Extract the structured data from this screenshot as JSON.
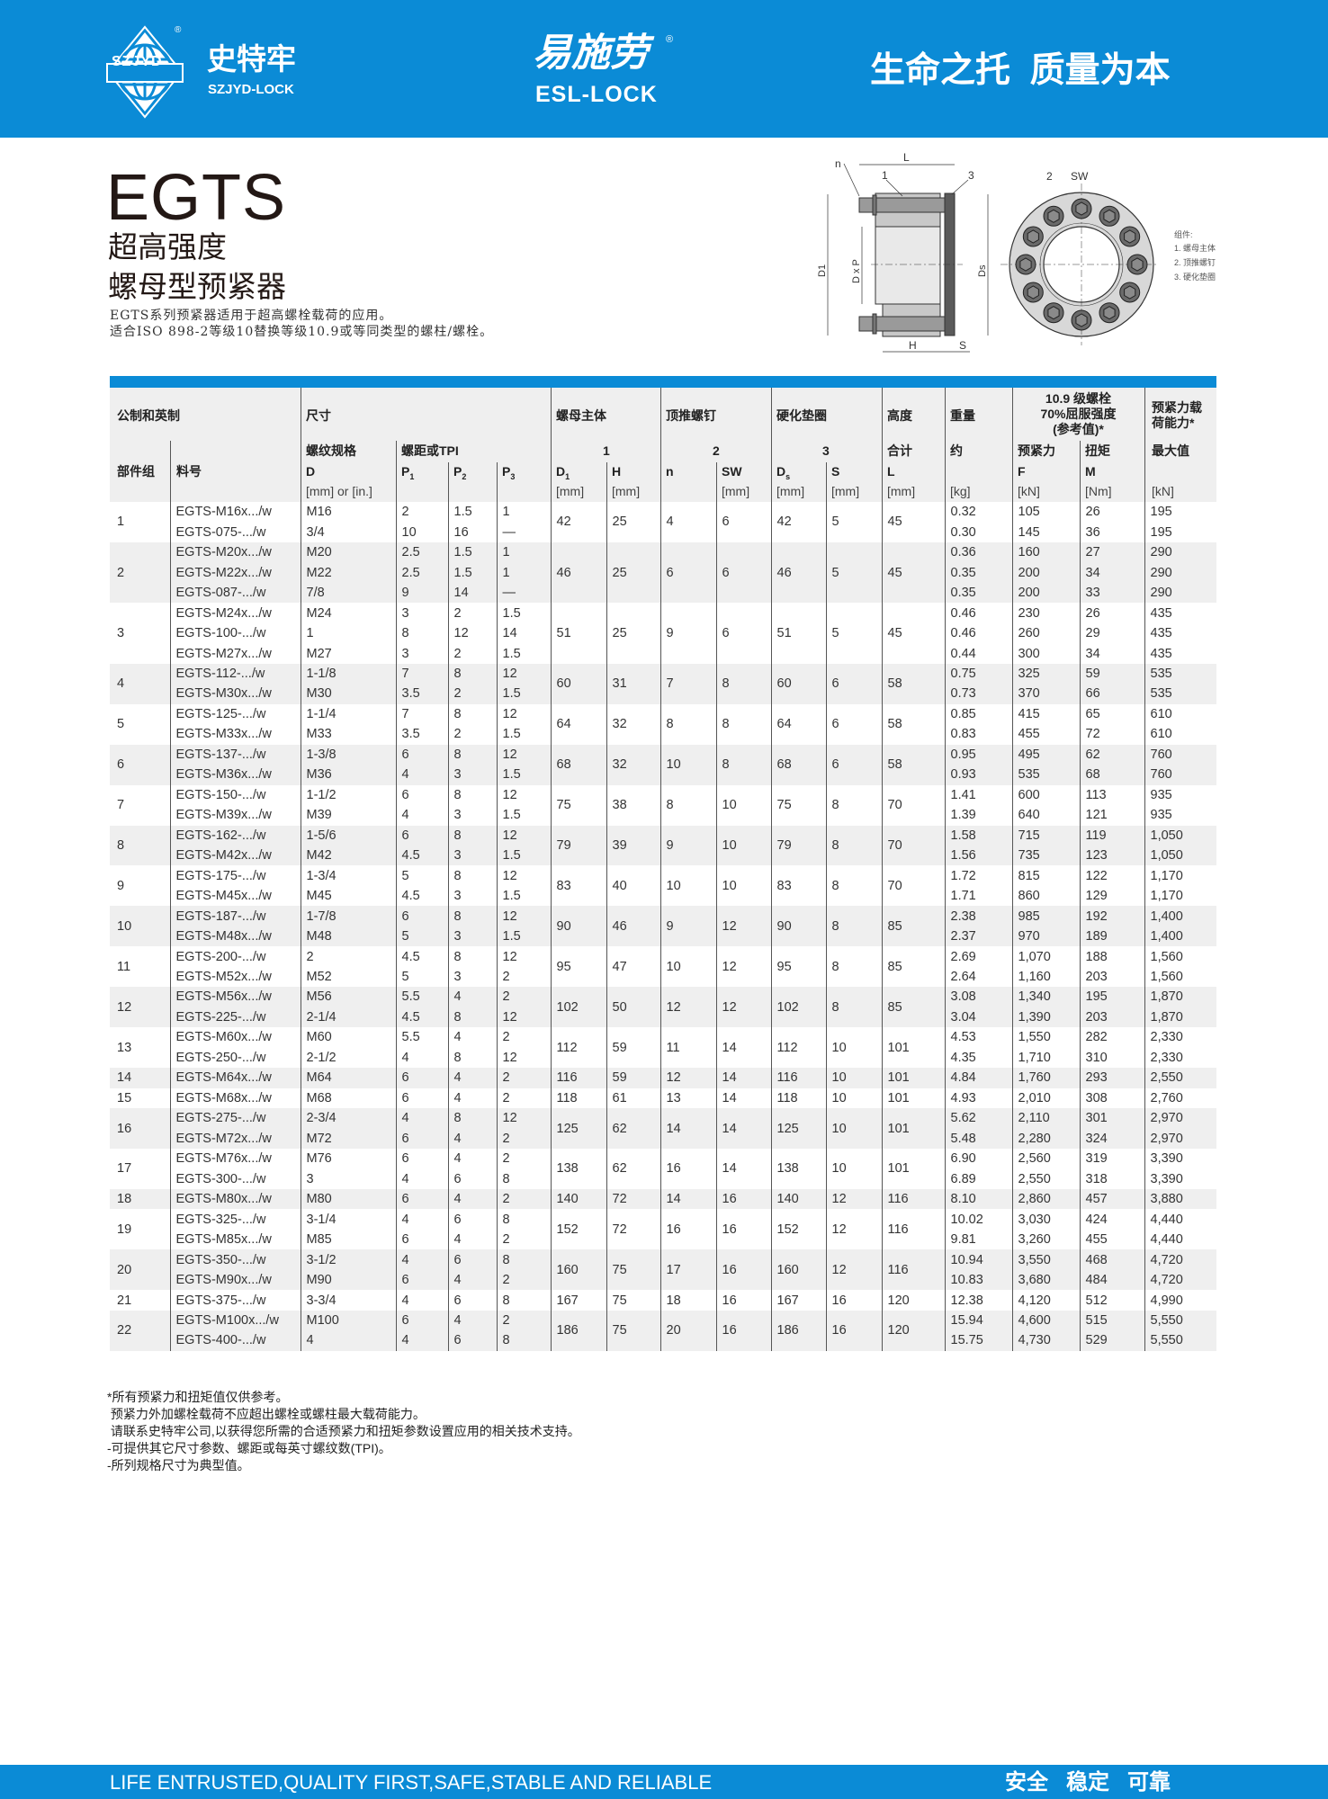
{
  "header": {
    "brand_cn": "史特牢",
    "brand_en": "SZJYD-LOCK",
    "logo_text": "SZJYD",
    "registered": "®",
    "center_cn": "易施劳",
    "center_en": "ESL-LOCK",
    "slogan": "生命之托  质量为本",
    "accent_color": "#0b8bd6"
  },
  "product": {
    "code": "EGTS",
    "subtitle1": "超高强度",
    "subtitle2": "螺母型预紧器",
    "desc1": "EGTS系列预紧器适用于超高螺栓载荷的应用。",
    "desc2": "适合ISO 898-2等级10替换等级10.9或等同类型的螺柱/螺栓。"
  },
  "drawing": {
    "labels": {
      "n": "n",
      "L": "L",
      "p1": "1",
      "p3": "3",
      "p2": "2",
      "SW": "SW",
      "D1": "D1",
      "DxP": "D x P",
      "Ds": "Ds",
      "H": "H",
      "S": "S"
    },
    "legend_title": "组件:",
    "legend": [
      "1.  螺母主体",
      "2.  顶推螺钉",
      "3.  硬化垫圈"
    ]
  },
  "table": {
    "head": {
      "metric_imperial": "公制和英制",
      "dimensions": "尺寸",
      "nut_body": "螺母主体",
      "jackbolt": "顶推螺钉",
      "washer": "硬化垫圈",
      "height": "高度",
      "weight": "重量",
      "grade_l1": "10.9 级螺栓",
      "grade_l2": "70%屈服强度",
      "grade_l3": "(参考值)*",
      "capacity_l1": "预紧力载",
      "capacity_l2": "荷能力*",
      "thread_spec": "螺纹规格",
      "pitch_tpi": "螺距或TPI",
      "n1": "1",
      "n2": "2",
      "n3": "3",
      "total": "合计",
      "approx": "约",
      "preload": "预紧力",
      "torque": "扭矩",
      "max": "最大值",
      "group": "部件组",
      "part_no": "料号",
      "D": "D",
      "P": "P",
      "s1": "1",
      "s2": "2",
      "s3": "3",
      "D1": "D",
      "H": "H",
      "n": "n",
      "SW": "SW",
      "Ds": "D",
      "s_s": "s",
      "S": "S",
      "L": "L",
      "F": "F",
      "M": "M",
      "u_D": "[mm] or [in.]",
      "u_mm": "[mm]",
      "u_kg": "[kg]",
      "u_kN": "[kN]",
      "u_Nm": "[Nm]"
    },
    "groups": [
      {
        "g": "1",
        "D1": "42",
        "H": "25",
        "n": "4",
        "SW": "6",
        "Ds": "42",
        "S": "5",
        "L": "45",
        "rows": [
          [
            "EGTS-M16x.../w",
            "M16",
            "2",
            "1.5",
            "1",
            "0.32",
            "105",
            "26",
            "195"
          ],
          [
            "EGTS-075-.../w",
            "3/4",
            "10",
            "16",
            "—",
            "0.30",
            "145",
            "36",
            "195"
          ]
        ]
      },
      {
        "g": "2",
        "D1": "46",
        "H": "25",
        "n": "6",
        "SW": "6",
        "Ds": "46",
        "S": "5",
        "L": "45",
        "rows": [
          [
            "EGTS-M20x.../w",
            "M20",
            "2.5",
            "1.5",
            "1",
            "0.36",
            "160",
            "27",
            "290"
          ],
          [
            "EGTS-M22x.../w",
            "M22",
            "2.5",
            "1.5",
            "1",
            "0.35",
            "200",
            "34",
            "290"
          ],
          [
            "EGTS-087-.../w",
            "7/8",
            "9",
            "14",
            "—",
            "0.35",
            "200",
            "33",
            "290"
          ]
        ]
      },
      {
        "g": "3",
        "D1": "51",
        "H": "25",
        "n": "9",
        "SW": "6",
        "Ds": "51",
        "S": "5",
        "L": "45",
        "rows": [
          [
            "EGTS-M24x.../w",
            "M24",
            "3",
            "2",
            "1.5",
            "0.46",
            "230",
            "26",
            "435"
          ],
          [
            "EGTS-100-.../w",
            "1",
            "8",
            "12",
            "14",
            "0.46",
            "260",
            "29",
            "435"
          ],
          [
            "EGTS-M27x.../w",
            "M27",
            "3",
            "2",
            "1.5",
            "0.44",
            "300",
            "34",
            "435"
          ]
        ]
      },
      {
        "g": "4",
        "D1": "60",
        "H": "31",
        "n": "7",
        "SW": "8",
        "Ds": "60",
        "S": "6",
        "L": "58",
        "rows": [
          [
            "EGTS-112-.../w",
            "1-1/8",
            "7",
            "8",
            "12",
            "0.75",
            "325",
            "59",
            "535"
          ],
          [
            "EGTS-M30x.../w",
            "M30",
            "3.5",
            "2",
            "1.5",
            "0.73",
            "370",
            "66",
            "535"
          ]
        ]
      },
      {
        "g": "5",
        "D1": "64",
        "H": "32",
        "n": "8",
        "SW": "8",
        "Ds": "64",
        "S": "6",
        "L": "58",
        "rows": [
          [
            "EGTS-125-.../w",
            "1-1/4",
            "7",
            "8",
            "12",
            "0.85",
            "415",
            "65",
            "610"
          ],
          [
            "EGTS-M33x.../w",
            "M33",
            "3.5",
            "2",
            "1.5",
            "0.83",
            "455",
            "72",
            "610"
          ]
        ]
      },
      {
        "g": "6",
        "D1": "68",
        "H": "32",
        "n": "10",
        "SW": "8",
        "Ds": "68",
        "S": "6",
        "L": "58",
        "rows": [
          [
            "EGTS-137-.../w",
            "1-3/8",
            "6",
            "8",
            "12",
            "0.95",
            "495",
            "62",
            "760"
          ],
          [
            "EGTS-M36x.../w",
            "M36",
            "4",
            "3",
            "1.5",
            "0.93",
            "535",
            "68",
            "760"
          ]
        ]
      },
      {
        "g": "7",
        "D1": "75",
        "H": "38",
        "n": "8",
        "SW": "10",
        "Ds": "75",
        "S": "8",
        "L": "70",
        "rows": [
          [
            "EGTS-150-.../w",
            "1-1/2",
            "6",
            "8",
            "12",
            "1.41",
            "600",
            "113",
            "935"
          ],
          [
            "EGTS-M39x.../w",
            "M39",
            "4",
            "3",
            "1.5",
            "1.39",
            "640",
            "121",
            "935"
          ]
        ]
      },
      {
        "g": "8",
        "D1": "79",
        "H": "39",
        "n": "9",
        "SW": "10",
        "Ds": "79",
        "S": "8",
        "L": "70",
        "rows": [
          [
            "EGTS-162-.../w",
            "1-5/6",
            "6",
            "8",
            "12",
            "1.58",
            "715",
            "119",
            "1,050"
          ],
          [
            "EGTS-M42x.../w",
            "M42",
            "4.5",
            "3",
            "1.5",
            "1.56",
            "735",
            "123",
            "1,050"
          ]
        ]
      },
      {
        "g": "9",
        "D1": "83",
        "H": "40",
        "n": "10",
        "SW": "10",
        "Ds": "83",
        "S": "8",
        "L": "70",
        "rows": [
          [
            "EGTS-175-.../w",
            "1-3/4",
            "5",
            "8",
            "12",
            "1.72",
            "815",
            "122",
            "1,170"
          ],
          [
            "EGTS-M45x.../w",
            "M45",
            "4.5",
            "3",
            "1.5",
            "1.71",
            "860",
            "129",
            "1,170"
          ]
        ]
      },
      {
        "g": "10",
        "D1": "90",
        "H": "46",
        "n": "9",
        "SW": "12",
        "Ds": "90",
        "S": "8",
        "L": "85",
        "rows": [
          [
            "EGTS-187-.../w",
            "1-7/8",
            "6",
            "8",
            "12",
            "2.38",
            "985",
            "192",
            "1,400"
          ],
          [
            "EGTS-M48x.../w",
            "M48",
            "5",
            "3",
            "1.5",
            "2.37",
            "970",
            "189",
            "1,400"
          ]
        ]
      },
      {
        "g": "11",
        "D1": "95",
        "H": "47",
        "n": "10",
        "SW": "12",
        "Ds": "95",
        "S": "8",
        "L": "85",
        "rows": [
          [
            "EGTS-200-.../w",
            "2",
            "4.5",
            "8",
            "12",
            "2.69",
            "1,070",
            "188",
            "1,560"
          ],
          [
            "EGTS-M52x.../w",
            "M52",
            "5",
            "3",
            "2",
            "2.64",
            "1,160",
            "203",
            "1,560"
          ]
        ]
      },
      {
        "g": "12",
        "D1": "102",
        "H": "50",
        "n": "12",
        "SW": "12",
        "Ds": "102",
        "S": "8",
        "L": "85",
        "rows": [
          [
            "EGTS-M56x.../w",
            "M56",
            "5.5",
            "4",
            "2",
            "3.08",
            "1,340",
            "195",
            "1,870"
          ],
          [
            "EGTS-225-.../w",
            "2-1/4",
            "4.5",
            "8",
            "12",
            "3.04",
            "1,390",
            "203",
            "1,870"
          ]
        ]
      },
      {
        "g": "13",
        "D1": "112",
        "H": "59",
        "n": "11",
        "SW": "14",
        "Ds": "112",
        "S": "10",
        "L": "101",
        "rows": [
          [
            "EGTS-M60x.../w",
            "M60",
            "5.5",
            "4",
            "2",
            "4.53",
            "1,550",
            "282",
            "2,330"
          ],
          [
            "EGTS-250-.../w",
            "2-1/2",
            "4",
            "8",
            "12",
            "4.35",
            "1,710",
            "310",
            "2,330"
          ]
        ]
      },
      {
        "g": "14",
        "D1": "116",
        "H": "59",
        "n": "12",
        "SW": "14",
        "Ds": "116",
        "S": "10",
        "L": "101",
        "rows": [
          [
            "EGTS-M64x.../w",
            "M64",
            "6",
            "4",
            "2",
            "4.84",
            "1,760",
            "293",
            "2,550"
          ]
        ]
      },
      {
        "g": "15",
        "D1": "118",
        "H": "61",
        "n": "13",
        "SW": "14",
        "Ds": "118",
        "S": "10",
        "L": "101",
        "rows": [
          [
            "EGTS-M68x.../w",
            "M68",
            "6",
            "4",
            "2",
            "4.93",
            "2,010",
            "308",
            "2,760"
          ]
        ]
      },
      {
        "g": "16",
        "D1": "125",
        "H": "62",
        "n": "14",
        "SW": "14",
        "Ds": "125",
        "S": "10",
        "L": "101",
        "rows": [
          [
            "EGTS-275-.../w",
            "2-3/4",
            "4",
            "8",
            "12",
            "5.62",
            "2,110",
            "301",
            "2,970"
          ],
          [
            "EGTS-M72x.../w",
            "M72",
            "6",
            "4",
            "2",
            "5.48",
            "2,280",
            "324",
            "2,970"
          ]
        ]
      },
      {
        "g": "17",
        "D1": "138",
        "H": "62",
        "n": "16",
        "SW": "14",
        "Ds": "138",
        "S": "10",
        "L": "101",
        "rows": [
          [
            "EGTS-M76x.../w",
            "M76",
            "6",
            "4",
            "2",
            "6.90",
            "2,560",
            "319",
            "3,390"
          ],
          [
            "EGTS-300-.../w",
            "3",
            "4",
            "6",
            "8",
            "6.89",
            "2,550",
            "318",
            "3,390"
          ]
        ]
      },
      {
        "g": "18",
        "D1": "140",
        "H": "72",
        "n": "14",
        "SW": "16",
        "Ds": "140",
        "S": "12",
        "L": "116",
        "rows": [
          [
            "EGTS-M80x.../w",
            "M80",
            "6",
            "4",
            "2",
            "8.10",
            "2,860",
            "457",
            "3,880"
          ]
        ]
      },
      {
        "g": "19",
        "D1": "152",
        "H": "72",
        "n": "16",
        "SW": "16",
        "Ds": "152",
        "S": "12",
        "L": "116",
        "rows": [
          [
            "EGTS-325-.../w",
            "3-1/4",
            "4",
            "6",
            "8",
            "10.02",
            "3,030",
            "424",
            "4,440"
          ],
          [
            "EGTS-M85x.../w",
            "M85",
            "6",
            "4",
            "2",
            "9.81",
            "3,260",
            "455",
            "4,440"
          ]
        ]
      },
      {
        "g": "20",
        "D1": "160",
        "H": "75",
        "n": "17",
        "SW": "16",
        "Ds": "160",
        "S": "12",
        "L": "116",
        "rows": [
          [
            "EGTS-350-.../w",
            "3-1/2",
            "4",
            "6",
            "8",
            "10.94",
            "3,550",
            "468",
            "4,720"
          ],
          [
            "EGTS-M90x.../w",
            "M90",
            "6",
            "4",
            "2",
            "10.83",
            "3,680",
            "484",
            "4,720"
          ]
        ]
      },
      {
        "g": "21",
        "D1": "167",
        "H": "75",
        "n": "18",
        "SW": "16",
        "Ds": "167",
        "S": "16",
        "L": "120",
        "rows": [
          [
            "EGTS-375-.../w",
            "3-3/4",
            "4",
            "6",
            "8",
            "12.38",
            "4,120",
            "512",
            "4,990"
          ]
        ]
      },
      {
        "g": "22",
        "D1": "186",
        "H": "75",
        "n": "20",
        "SW": "16",
        "Ds": "186",
        "S": "16",
        "L": "120",
        "rows": [
          [
            "EGTS-M100x.../w",
            "M100",
            "6",
            "4",
            "2",
            "15.94",
            "4,600",
            "515",
            "5,550"
          ],
          [
            "EGTS-400-.../w",
            "4",
            "4",
            "6",
            "8",
            "15.75",
            "4,730",
            "529",
            "5,550"
          ]
        ]
      }
    ]
  },
  "notes": [
    "*所有预紧力和扭矩值仅供参考。",
    " 预紧力外加螺栓载荷不应超出螺栓或螺柱最大载荷能力。",
    " 请联系史特牢公司,以获得您所需的合适预紧力和扭矩参数设置应用的相关技术支持。",
    "-可提供其它尺寸参数、螺距或每英寸螺纹数(TPI)。",
    "-所列规格尺寸为典型值。"
  ],
  "footer": {
    "slogan_en": "LIFE ENTRUSTED,QUALITY FIRST,SAFE,STABLE AND RELIABLE",
    "slogan_cn": "安全   稳定   可靠"
  }
}
